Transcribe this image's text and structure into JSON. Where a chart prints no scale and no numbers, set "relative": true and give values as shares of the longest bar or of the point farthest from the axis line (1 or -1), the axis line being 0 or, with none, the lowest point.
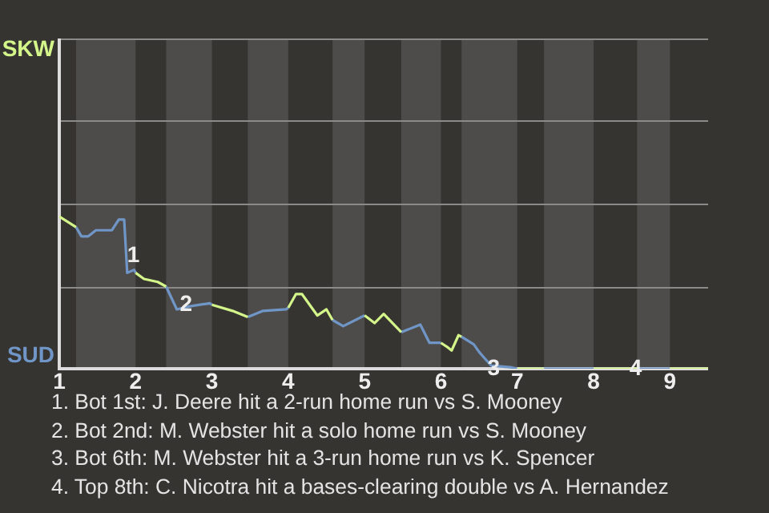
{
  "chart_data": {
    "type": "line",
    "relative": true,
    "xlim": [
      1,
      9.5
    ],
    "xticks": [
      1,
      2,
      3,
      4,
      5,
      6,
      7,
      8,
      9
    ],
    "legend": "left",
    "marker": "none",
    "series": [
      {
        "name": "SKW",
        "color": "#d4f58a",
        "x": [
          1,
          1.22,
          1.5,
          2,
          2.11,
          2.29,
          2.4,
          2.7,
          3,
          3.27,
          3.47,
          3.7,
          4,
          4.1,
          4.18,
          4.38,
          4.5,
          4.58,
          4.8,
          5,
          5.13,
          5.25,
          5.48,
          5.7,
          6,
          6.09,
          6.14,
          6.23,
          6.27,
          6.6,
          7,
          7.35,
          7.7,
          8,
          8.57,
          8.8,
          9,
          9.5
        ],
        "values": [
          1,
          0.93,
          null,
          0.63,
          0.59,
          0.57,
          0.54,
          null,
          0.42,
          0.38,
          0.34,
          null,
          0.4,
          0.49,
          0.49,
          0.35,
          0.39,
          0.32,
          null,
          0.35,
          0.3,
          0.36,
          0.24,
          null,
          0.17,
          0.14,
          0.12,
          0.22,
          0.21,
          null,
          0,
          0,
          null,
          0,
          0,
          null,
          0,
          0
        ]
      },
      {
        "name": "SUD",
        "color": "#7096c8",
        "x": [
          1.22,
          1.29,
          1.38,
          1.48,
          1.69,
          1.78,
          1.85,
          1.89,
          1.98,
          2,
          2.2,
          2.4,
          2.54,
          2.71,
          2.97,
          3,
          3.2,
          3.47,
          3.67,
          3.97,
          4,
          4.3,
          4.58,
          4.72,
          5,
          5.2,
          5.48,
          5.73,
          5.85,
          6,
          6.1,
          6.27,
          6.43,
          6.5,
          6.57,
          6.66,
          6.91,
          7,
          7.2,
          7.35,
          8,
          8.3,
          8.57,
          9
        ],
        "values": [
          0.93,
          0.87,
          0.87,
          0.91,
          0.91,
          0.98,
          0.98,
          0.63,
          0.65,
          0.63,
          null,
          0.54,
          0.39,
          0.41,
          0.43,
          0.42,
          null,
          0.34,
          0.38,
          0.39,
          0.4,
          null,
          0.32,
          0.28,
          0.35,
          null,
          0.24,
          0.29,
          0.17,
          0.17,
          null,
          0.21,
          0.16,
          0.11,
          0.07,
          0.02,
          0.01,
          0,
          null,
          0,
          0,
          null,
          0,
          0
        ]
      }
    ],
    "ref_lines": [
      {
        "axis": "y",
        "value": 0.54,
        "color": "#8a8a88"
      },
      {
        "axis": "y",
        "value": 1.09,
        "color": "#8a8a88"
      },
      {
        "axis": "y",
        "value": 1.63,
        "color": "#8a8a88"
      },
      {
        "axis": "y",
        "value": 2.17,
        "color": "#8a8a88"
      }
    ],
    "bands": [
      {
        "axis": "x",
        "from": 1.22,
        "to": 2,
        "color": "#4d4c4a"
      },
      {
        "axis": "x",
        "from": 2.4,
        "to": 3,
        "color": "#4d4c4a"
      },
      {
        "axis": "x",
        "from": 3.47,
        "to": 4,
        "color": "#4d4c4a"
      },
      {
        "axis": "x",
        "from": 4.58,
        "to": 5,
        "color": "#4d4c4a"
      },
      {
        "axis": "x",
        "from": 5.48,
        "to": 6,
        "color": "#4d4c4a"
      },
      {
        "axis": "x",
        "from": 6.27,
        "to": 7,
        "color": "#4d4c4a"
      },
      {
        "axis": "x",
        "from": 7.35,
        "to": 8,
        "color": "#4d4c4a"
      },
      {
        "axis": "x",
        "from": 8.57,
        "to": 9,
        "color": "#4d4c4a"
      }
    ],
    "annotations": [
      {
        "text": "1",
        "x": 1.97,
        "y": 0.74
      },
      {
        "text": "2",
        "x": 2.66,
        "y": 0.42
      },
      {
        "text": "3",
        "x": 6.69,
        "y": 0
      },
      {
        "text": "4",
        "x": 8.55,
        "y": 0
      },
      "1. Bot 1st: J. Deere hit a 2-run home run vs S. Mooney",
      "2. Bot 2nd: M. Webster hit a solo home run vs S. Mooney",
      "3. Bot 6th: M. Webster hit a 3-run home run vs K. Spencer",
      "4. Top 8th: C. Nicotra hit a bases-clearing double vs A. Hernandez"
    ]
  }
}
